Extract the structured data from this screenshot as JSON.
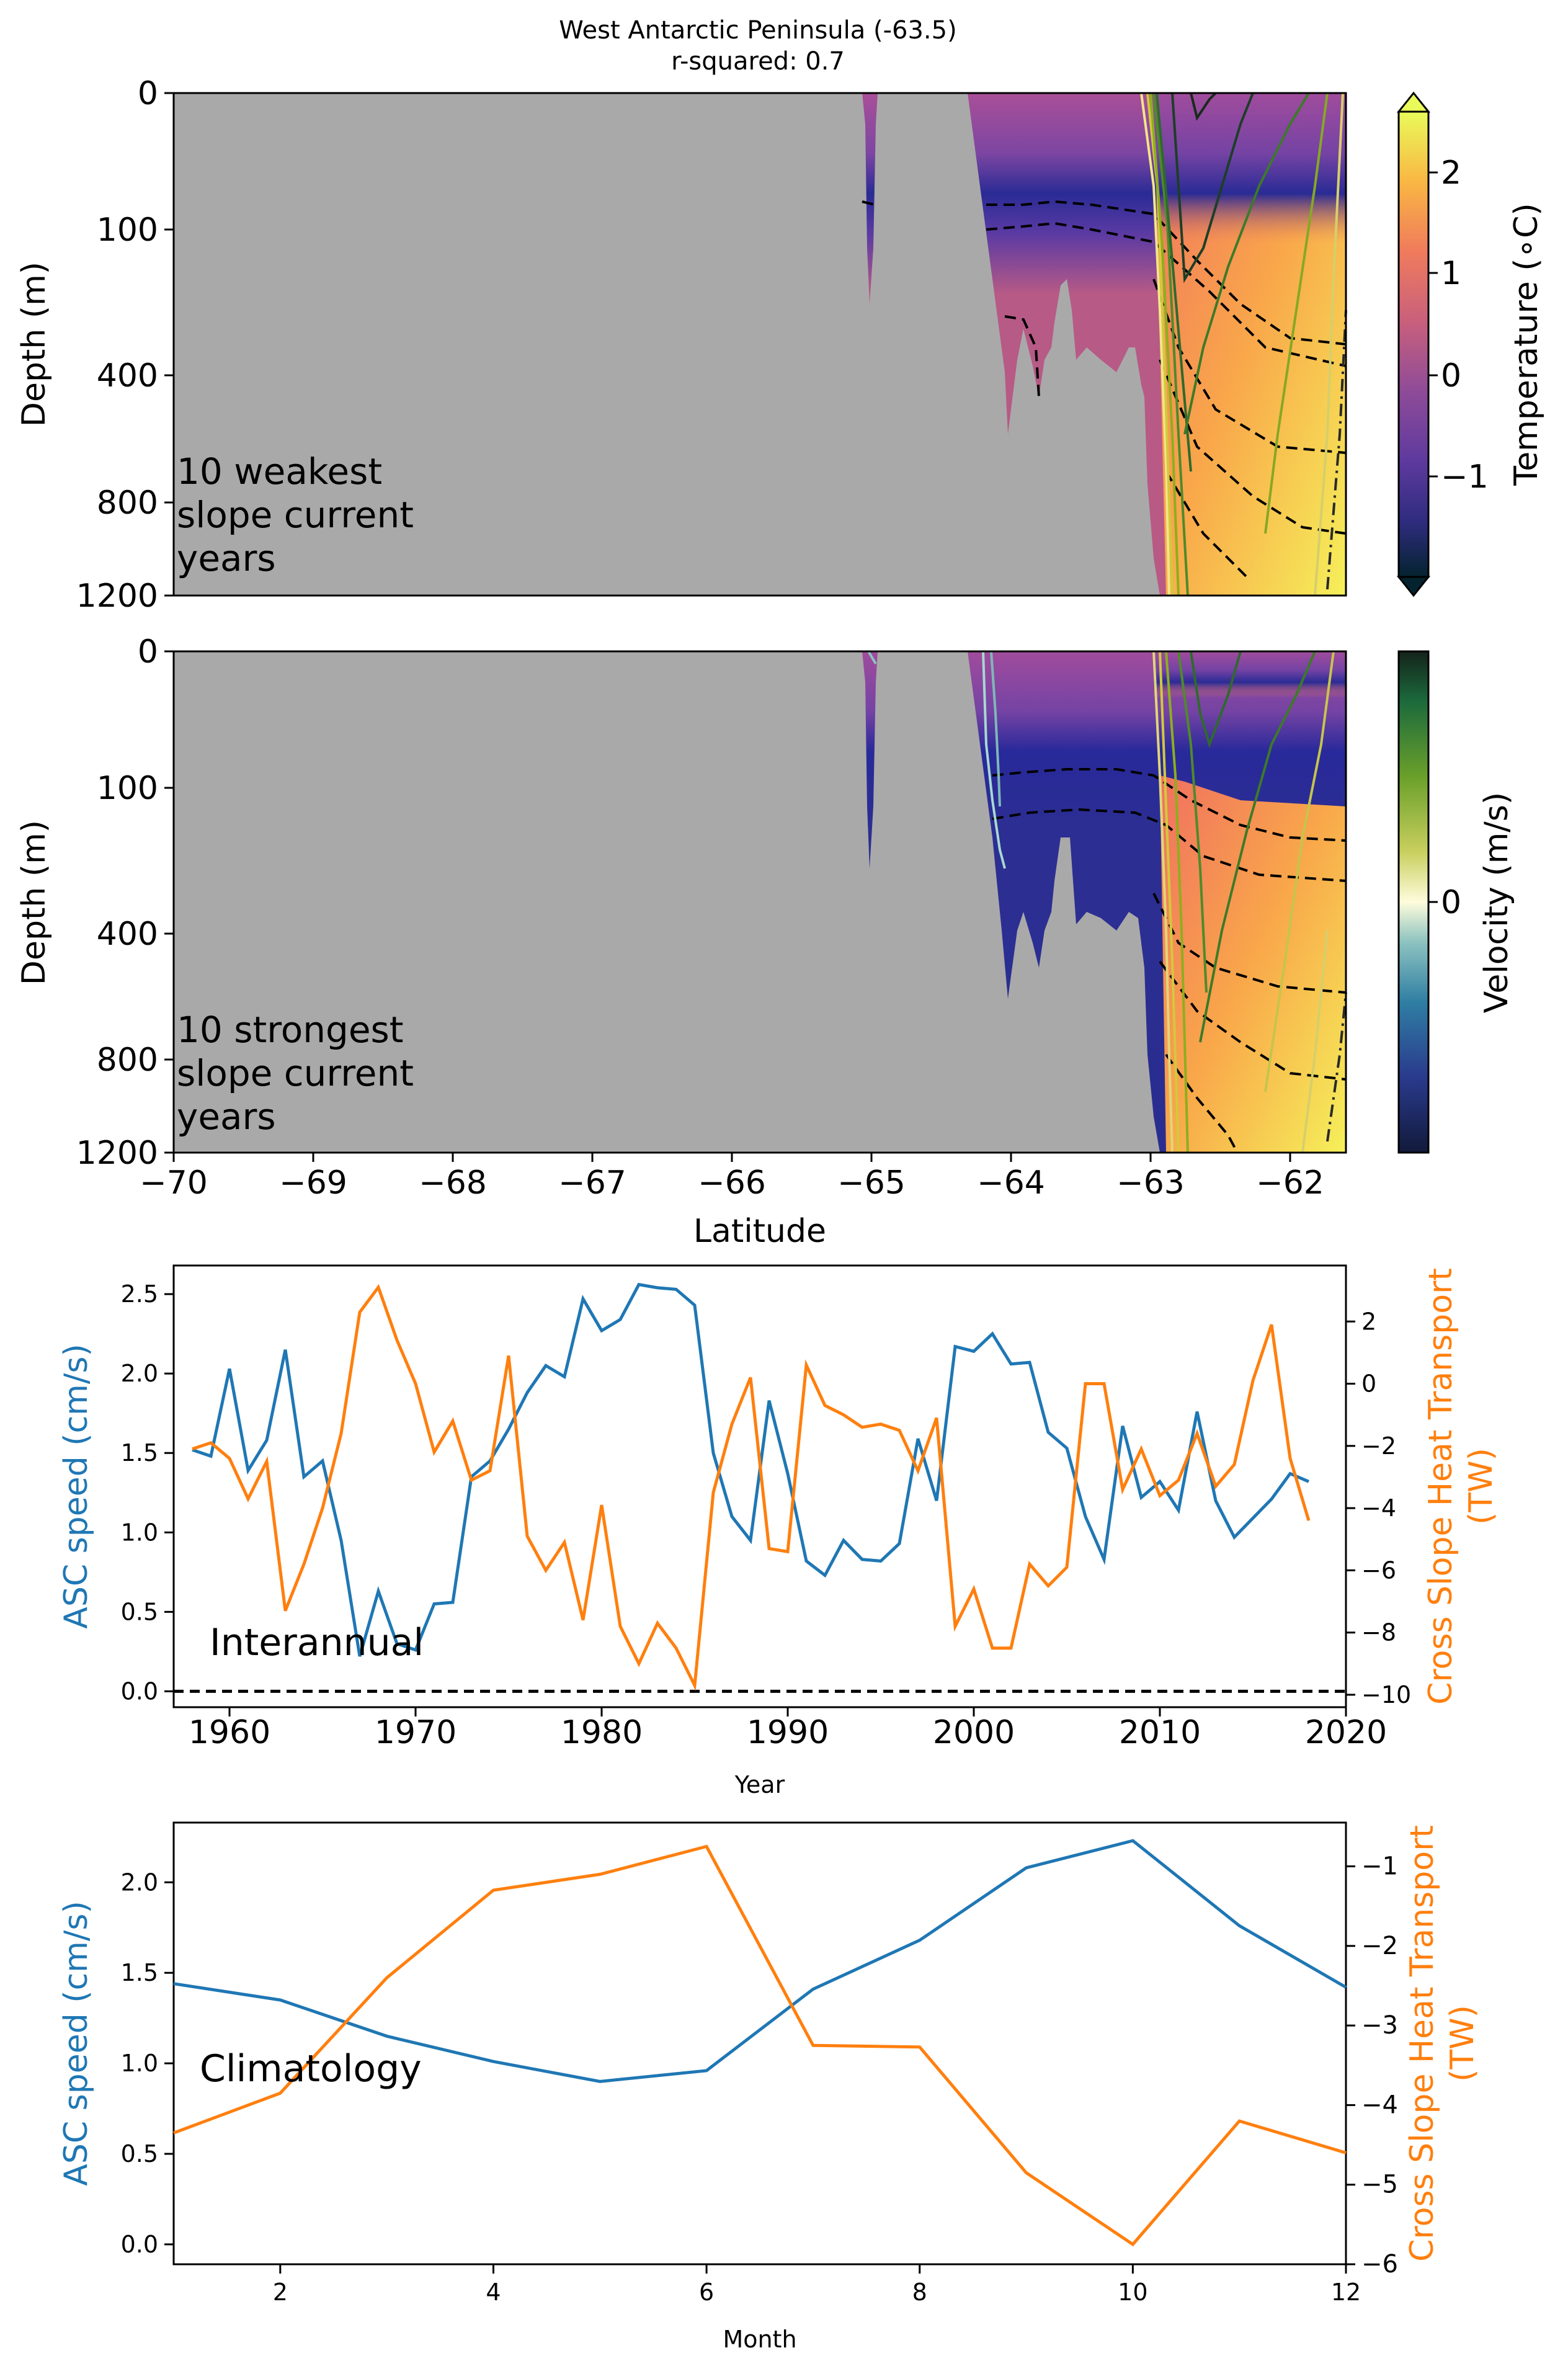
{
  "figure": {
    "title_line1": "West Antarctic Peninsula (-63.5)",
    "title_line2": "r-squared: 0.7"
  },
  "colors": {
    "land": "#a9a9a9",
    "asc": "#1f77b4",
    "heat": "#ff7f0e",
    "contour_dashed": "#000000"
  },
  "chart_data": [
    {
      "type": "heatmap",
      "name": "weakest",
      "annotation_lines": [
        "10 weakest",
        "slope current",
        "years"
      ],
      "ylabel": "Depth (m)",
      "yticks": [
        "0",
        "100",
        "400",
        "800",
        "1200"
      ],
      "xlim": [
        -70,
        -61.6
      ],
      "colorbar": {
        "label": "Temperature (∘C)",
        "ticks": [
          "2",
          "1",
          "0",
          "−1"
        ],
        "colormap": "thermal",
        "range": [
          -1.8,
          2.6
        ]
      }
    },
    {
      "type": "heatmap",
      "name": "strongest",
      "annotation_lines": [
        "10 strongest",
        "slope current",
        "years"
      ],
      "ylabel": "Depth (m)",
      "yticks": [
        "0",
        "100",
        "400",
        "800",
        "1200"
      ],
      "xlabel": "Latitude",
      "xticks": [
        "−70",
        "−69",
        "−68",
        "−67",
        "−66",
        "−65",
        "−64",
        "−63",
        "−62"
      ],
      "xlim": [
        -70,
        -61.6
      ],
      "colorbar": {
        "label": "Velocity (m/s)",
        "ticks": [
          "0"
        ],
        "colormap": "delta"
      }
    },
    {
      "type": "line",
      "name": "interannual",
      "annotation": "Interannual",
      "xlabel": "Year",
      "ylabel_left": "ASC speed (cm/s)",
      "ylabel_right_line1": "Cross Slope Heat Transport",
      "ylabel_right_line2": "(TW)",
      "xlim": [
        1957,
        2020
      ],
      "ylim_left": [
        -0.1,
        2.68
      ],
      "ylim_right": [
        -10.4,
        3.8
      ],
      "xticks": [
        "1960",
        "1970",
        "1980",
        "1990",
        "2000",
        "2010",
        "2020"
      ],
      "yticks_left": [
        "0.0",
        "0.5",
        "1.0",
        "1.5",
        "2.0",
        "2.5"
      ],
      "yticks_right": [
        "−10",
        "−8",
        "−6",
        "−4",
        "−2",
        "0",
        "2"
      ],
      "x": [
        1958,
        1959,
        1960,
        1961,
        1962,
        1963,
        1964,
        1965,
        1966,
        1967,
        1968,
        1969,
        1970,
        1971,
        1972,
        1973,
        1974,
        1975,
        1976,
        1977,
        1978,
        1979,
        1980,
        1981,
        1982,
        1983,
        1984,
        1985,
        1986,
        1987,
        1988,
        1989,
        1990,
        1991,
        1992,
        1993,
        1994,
        1995,
        1996,
        1997,
        1998,
        1999,
        2000,
        2001,
        2002,
        2003,
        2004,
        2005,
        2006,
        2007,
        2008,
        2009,
        2010,
        2011,
        2012,
        2013,
        2014,
        2015,
        2016,
        2017,
        2018
      ],
      "series": [
        {
          "name": "ASC speed",
          "axis": "left",
          "values": [
            1.52,
            1.48,
            2.03,
            1.39,
            1.58,
            2.15,
            1.35,
            1.45,
            0.95,
            0.22,
            0.63,
            0.3,
            0.26,
            0.55,
            0.56,
            1.35,
            1.45,
            1.65,
            1.88,
            2.05,
            1.98,
            2.47,
            2.27,
            2.34,
            2.56,
            2.54,
            2.53,
            2.43,
            1.5,
            1.1,
            0.95,
            1.83,
            1.37,
            0.82,
            0.73,
            0.95,
            0.83,
            0.82,
            0.93,
            1.59,
            1.2,
            2.17,
            2.14,
            2.25,
            2.06,
            2.07,
            1.63,
            1.53,
            1.1,
            0.83,
            1.67,
            1.22,
            1.32,
            1.14,
            1.76,
            1.2,
            0.97,
            1.09,
            1.21,
            1.37,
            1.32
          ]
        },
        {
          "name": "Cross Slope Heat Transport",
          "axis": "right",
          "values": [
            -2.1,
            -1.9,
            -2.4,
            -3.7,
            -2.5,
            -7.3,
            -5.8,
            -4.0,
            -1.6,
            2.3,
            3.1,
            1.4,
            0.0,
            -2.2,
            -1.2,
            -3.1,
            -2.8,
            0.9,
            -4.9,
            -6.0,
            -5.1,
            -7.6,
            -3.9,
            -7.8,
            -9.0,
            -7.7,
            -8.5,
            -9.7,
            -3.5,
            -1.3,
            0.2,
            -5.3,
            -5.4,
            0.6,
            -0.7,
            -1.0,
            -1.4,
            -1.3,
            -1.5,
            -2.8,
            -1.1,
            -7.8,
            -6.6,
            -8.5,
            -8.5,
            -5.8,
            -6.5,
            -5.9,
            0.0,
            0.0,
            -3.4,
            -2.1,
            -3.6,
            -3.1,
            -1.6,
            -3.3,
            -2.6,
            0.1,
            1.9,
            -2.4,
            -4.4
          ]
        }
      ],
      "reference_line": 0
    },
    {
      "type": "line",
      "name": "climatology",
      "annotation": "Climatology",
      "xlabel": "Month",
      "ylabel_left": "ASC speed (cm/s)",
      "ylabel_right_line1": "Cross Slope Heat Transport",
      "ylabel_right_line2": "(TW)",
      "xlim": [
        1,
        12
      ],
      "ylim_left": [
        -0.11,
        2.33
      ],
      "ylim_right": [
        -6.0,
        -0.45
      ],
      "xticks": [
        "2",
        "4",
        "6",
        "8",
        "10",
        "12"
      ],
      "yticks_left": [
        "0.0",
        "0.5",
        "1.0",
        "1.5",
        "2.0"
      ],
      "yticks_right": [
        "−6",
        "−5",
        "−4",
        "−3",
        "−2",
        "−1"
      ],
      "x": [
        1,
        2,
        3,
        4,
        5,
        6,
        7,
        8,
        9,
        10,
        11,
        12
      ],
      "series": [
        {
          "name": "ASC speed",
          "axis": "left",
          "values": [
            1.44,
            1.35,
            1.15,
            1.01,
            0.9,
            0.96,
            1.41,
            1.68,
            2.08,
            2.23,
            1.76,
            1.42
          ]
        },
        {
          "name": "Cross Slope Heat Transport",
          "axis": "right",
          "values": [
            -4.35,
            -3.85,
            -2.4,
            -1.3,
            -1.1,
            -0.75,
            -3.25,
            -3.27,
            -4.85,
            -5.75,
            -4.2,
            -4.6
          ]
        }
      ]
    }
  ]
}
